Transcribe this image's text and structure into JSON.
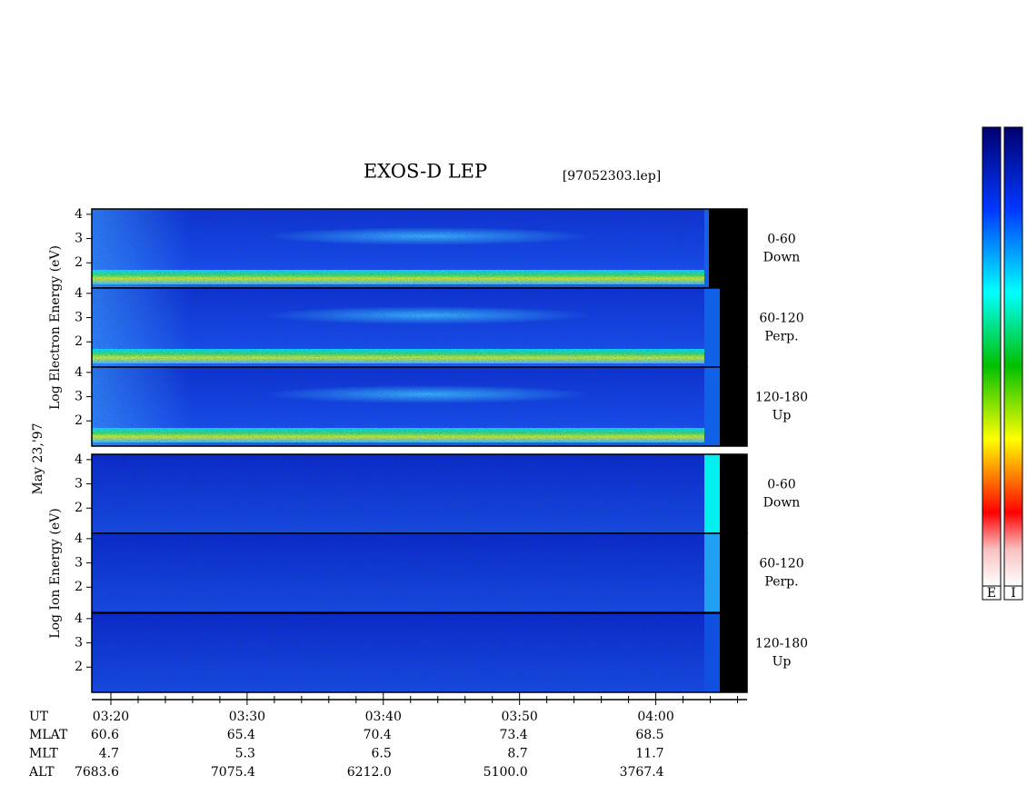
{
  "chart_data": {
    "type": "spectrogram",
    "title": "EXOS-D LEP",
    "subtitle": "[97052303.lep]",
    "date_label": "May 23,'97",
    "groups": [
      {
        "ylabel": "Log Electron Energy (eV)",
        "species": "electron",
        "panels": [
          {
            "angle": "0-60",
            "direction": "Down"
          },
          {
            "angle": "60-120",
            "direction": "Perp."
          },
          {
            "angle": "120-180",
            "direction": "Up"
          }
        ]
      },
      {
        "ylabel": "Log Ion Energy (eV)",
        "species": "ion",
        "panels": [
          {
            "angle": "0-60",
            "direction": "Down"
          },
          {
            "angle": "60-120",
            "direction": "Perp."
          },
          {
            "angle": "120-180",
            "direction": "Up"
          }
        ]
      }
    ],
    "ylim": [
      0.96,
      4.22
    ],
    "yticks": [
      2,
      3,
      4
    ],
    "x_label": "UT",
    "xlim": [
      18.6,
      66.7
    ],
    "xticks": [
      {
        "value": 20,
        "label": "03:20"
      },
      {
        "value": 30,
        "label": "03:30"
      },
      {
        "value": 40,
        "label": "03:40"
      },
      {
        "value": 50,
        "label": "03:50"
      },
      {
        "value": 60,
        "label": "04:00"
      }
    ],
    "xminorticks": [
      22,
      24,
      26,
      28,
      32,
      34,
      36,
      38,
      42,
      44,
      46,
      48,
      52,
      54,
      56,
      58,
      62,
      64,
      66
    ],
    "orbit_table": {
      "row_labels": [
        "MLAT",
        "MLT",
        "ALT"
      ],
      "rows": [
        [
          "60.6",
          "65.4",
          "70.4",
          "73.4",
          "68.5"
        ],
        [
          "4.7",
          "5.3",
          "6.5",
          "8.7",
          "11.7"
        ],
        [
          "7683.6",
          "7075.4",
          "6212.0",
          "5100.0",
          "3767.4"
        ]
      ]
    },
    "colorbar_labels": [
      "E",
      "I"
    ]
  }
}
